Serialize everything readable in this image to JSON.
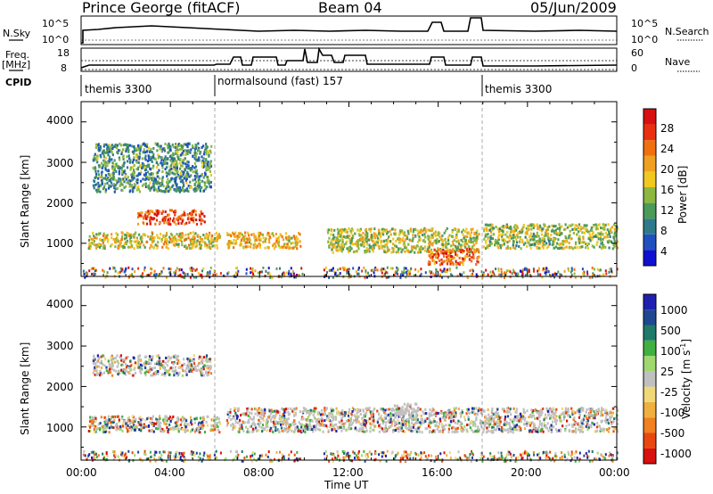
{
  "header": {
    "station": "Prince George (fitACF)",
    "beam": "Beam 04",
    "date": "05/Jun/2009"
  },
  "top_panels": {
    "nsky_label": "N.Sky",
    "nsky_scale_hi": "10^5",
    "nsky_scale_lo": "10^0",
    "nsearch_label": "N.Search",
    "nsearch_scale_hi": "10^5",
    "nsearch_scale_lo": "10^0",
    "freq_label_1": "Freq.",
    "freq_label_2": "[MHz]",
    "freq_hi": "18",
    "freq_lo": "8",
    "nave_label": "Nave",
    "nave_hi": "60",
    "nave_lo": "0",
    "cpid_label": "CPID",
    "cpid_segments": [
      {
        "label": "themis 3300",
        "start_h": 0
      },
      {
        "label": "normalsound (fast) 157",
        "start_h": 6
      },
      {
        "label": "themis 3300",
        "start_h": 18
      }
    ]
  },
  "chart_data": [
    {
      "type": "heatmap",
      "title": "",
      "ylabel": "Slant Range [km]",
      "ylim": [
        180,
        4500
      ],
      "yticks": [
        1000,
        2000,
        3000,
        4000
      ],
      "xlim_hours": [
        0,
        24
      ],
      "colorbar": {
        "label": "Power [dB]",
        "ticks": [
          "4",
          "8",
          "12",
          "16",
          "20",
          "24",
          "28"
        ],
        "colors": [
          "#1010d0",
          "#2050c0",
          "#2f7a8a",
          "#4c9a5a",
          "#8cb840",
          "#f0c820",
          "#f0a020",
          "#f07010",
          "#e83010",
          "#d81010"
        ]
      },
      "scatter_bands": [
        {
          "t0": 0.3,
          "t1": 6.2,
          "r0": 900,
          "r1": 1300,
          "level": 0.55
        },
        {
          "t0": 2.5,
          "t1": 5.5,
          "r0": 1500,
          "r1": 1850,
          "level": 0.85
        },
        {
          "t0": 0.5,
          "t1": 5.8,
          "r0": 2300,
          "r1": 3500,
          "level": 0.3
        },
        {
          "t0": 6.5,
          "t1": 9.8,
          "r0": 900,
          "r1": 1300,
          "level": 0.6
        },
        {
          "t0": 11,
          "t1": 17.8,
          "r0": 800,
          "r1": 1400,
          "level": 0.5
        },
        {
          "t0": 15.5,
          "t1": 17.8,
          "r0": 500,
          "r1": 900,
          "level": 0.8
        },
        {
          "t0": 18,
          "t1": 24,
          "r0": 900,
          "r1": 1500,
          "level": 0.45
        }
      ]
    },
    {
      "type": "heatmap",
      "title": "",
      "ylabel": "Slant Range [km]",
      "ylim": [
        180,
        4500
      ],
      "yticks": [
        1000,
        2000,
        3000,
        4000
      ],
      "xlim_hours": [
        0,
        24
      ],
      "xticks": [
        "00:00",
        "04:00",
        "08:00",
        "12:00",
        "16:00",
        "20:00",
        "00:00"
      ],
      "xlabel": "Time UT",
      "colorbar": {
        "label": "Velocity [m s-1]",
        "label_main": "Velocity",
        "label_unit": "[m s",
        "label_exp": "-1",
        "label_close": "]",
        "ticks": [
          "-1000",
          "-500",
          "-100",
          "-25",
          "25",
          "100",
          "500",
          "1000"
        ],
        "colors": [
          "#d81010",
          "#e84810",
          "#f08020",
          "#f0b040",
          "#f0d878",
          "#c0c0c0",
          "#a0d870",
          "#40b040",
          "#1f7a6a",
          "#204890",
          "#2020b0"
        ]
      },
      "scatter_bands": [
        {
          "t0": 0.3,
          "t1": 6.2,
          "r0": 900,
          "r1": 1300,
          "level": 0.25
        },
        {
          "t0": 0.5,
          "t1": 5.8,
          "r0": 2300,
          "r1": 2800,
          "level": 0.5
        },
        {
          "t0": 6.5,
          "t1": 24,
          "r0": 900,
          "r1": 1500,
          "level": 0.5
        },
        {
          "t0": 14,
          "t1": 15,
          "r0": 1200,
          "r1": 1600,
          "level": 0.9
        }
      ]
    }
  ],
  "colors": {
    "axis": "#000000",
    "ground": "#c0c0c0"
  }
}
